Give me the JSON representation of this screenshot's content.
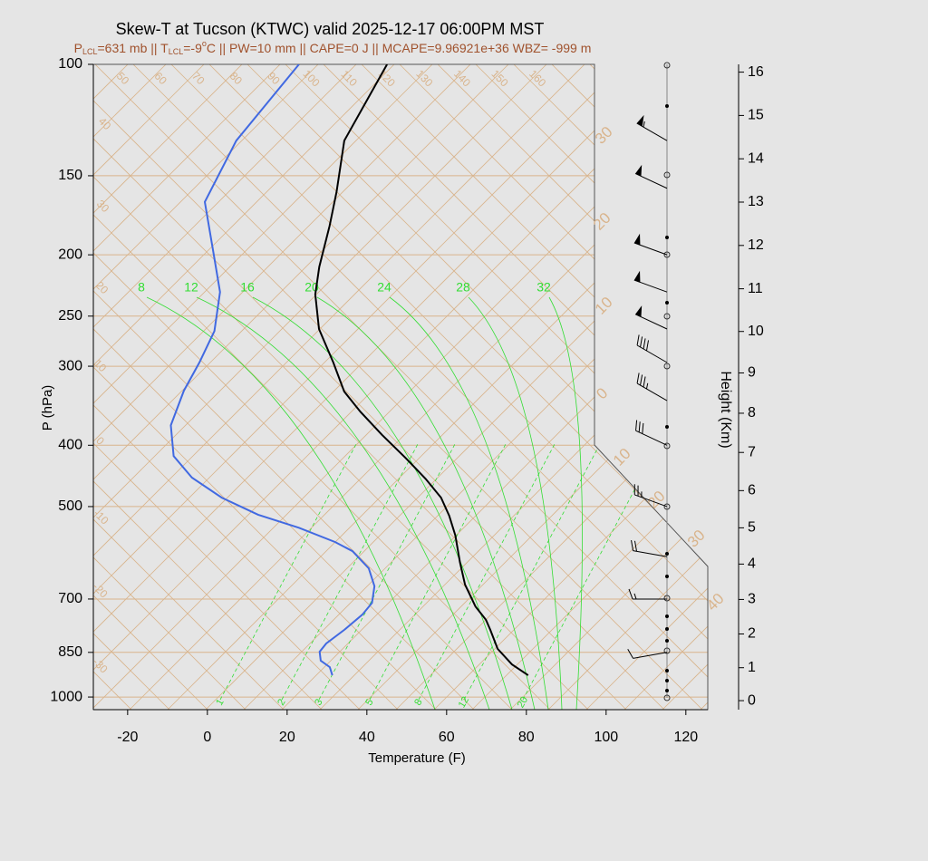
{
  "chart_data": {
    "type": "skew-t",
    "title": "Skew-T at Tucson (KTWC) valid 2025-12-17 06:00PM MST",
    "subtitle_parts": [
      "P",
      "LCL",
      "=631 mb || T",
      "LCL",
      "=-9",
      "o",
      "C || PW=10 mm || CAPE=0 J || MCAPE=9.96921e+36 WBZ= -999 m"
    ],
    "xlabel": "Temperature (F)",
    "ylabel": "P (hPa)",
    "y2label": "Height (Km)",
    "xlim": [
      -28.6,
      125.5
    ],
    "xticks": [
      -20,
      0,
      20,
      40,
      60,
      80,
      100,
      120
    ],
    "ylim": [
      1047,
      100
    ],
    "yticks": [
      100,
      150,
      200,
      250,
      300,
      400,
      500,
      700,
      850,
      1000
    ],
    "log_y": true,
    "y2ticks": [
      0,
      1,
      2,
      3,
      4,
      5,
      6,
      7,
      8,
      9,
      10,
      11,
      12,
      13,
      14,
      15,
      16
    ],
    "series": [
      {
        "color": "#000000",
        "pressure": [
          924,
          888,
          839,
          783,
          755,
          719,
          664,
          612,
          555,
          517,
          484,
          452,
          419,
          385,
          354,
          329,
          296,
          262,
          231,
          209,
          180,
          159,
          132,
          100
        ],
        "values": [
          75.0,
          68.2,
          60.7,
          54.1,
          50.5,
          44.5,
          36.4,
          29.5,
          21.6,
          15.2,
          8.6,
          0,
          -10.2,
          -22.0,
          -33.2,
          -42.3,
          -52.3,
          -64.3,
          -73.9,
          -79.8,
          -87.5,
          -94.3,
          -105.2,
          -113.6
        ]
      },
      {
        "color": "#4169e1",
        "pressure": [
          924,
          897,
          876,
          848,
          823,
          783,
          741,
          710,
          668,
          626,
          588,
          569,
          540,
          515,
          484,
          450,
          416,
          372,
          328,
          296,
          264,
          229,
          200,
          165,
          132,
          100
        ],
        "values": [
          25.9,
          23.2,
          19.3,
          16.8,
          16.4,
          17.5,
          18.2,
          17.7,
          14.1,
          8.2,
          -0.2,
          -6.8,
          -19.5,
          -33.0,
          -46.4,
          -58.9,
          -68.9,
          -77.3,
          -82.7,
          -85.9,
          -90.0,
          -98.4,
          -109.3,
          -124.8,
          -132.3,
          -135.7
        ]
      }
    ],
    "wind": {
      "pressure": [
        132,
        157,
        200,
        229,
        262,
        296,
        340,
        400,
        500,
        600,
        700,
        850
      ],
      "direction": [
        300,
        295,
        290,
        290,
        295,
        300,
        300,
        295,
        290,
        280,
        270,
        260
      ],
      "speed": [
        55,
        50,
        50,
        50,
        50,
        40,
        35,
        30,
        25,
        20,
        15,
        10
      ]
    },
    "annotations": {
      "dry_adiabats": [
        50,
        60,
        70,
        80,
        90,
        100,
        110,
        120,
        130,
        140,
        150,
        160
      ],
      "isotherms_left": [
        40,
        30,
        20,
        10,
        0,
        -10,
        -20,
        -30
      ],
      "isotherms_right": [
        30,
        20,
        10,
        0,
        10,
        20,
        30,
        40
      ],
      "moist_adiabats": [
        8,
        12,
        16,
        20,
        24,
        28,
        32
      ],
      "mixing_ratios": [
        1,
        2,
        3,
        5,
        8,
        12,
        20
      ]
    }
  }
}
